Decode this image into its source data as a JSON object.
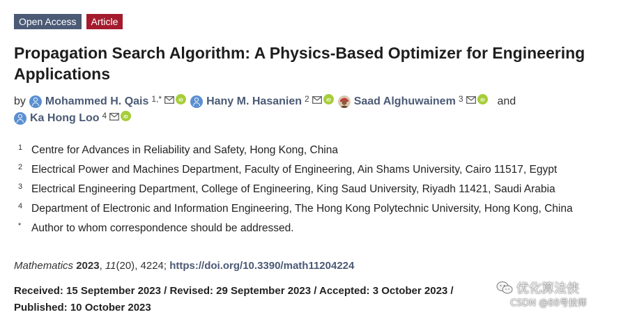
{
  "badges": {
    "open_access": "Open Access",
    "article_type": "Article"
  },
  "title": "Propagation Search Algorithm: A Physics-Based Optimizer for Engineering Applications",
  "authors": {
    "prefix": "by",
    "conjunction": "and",
    "list": [
      {
        "name": "Mohammed H. Qais",
        "affiliation": "1,*"
      },
      {
        "name": "Hany M. Hasanien",
        "affiliation": "2"
      },
      {
        "name": "Saad Alghuwainem",
        "affiliation": "3"
      },
      {
        "name": "Ka Hong Loo",
        "affiliation": "4"
      }
    ]
  },
  "affiliations": [
    {
      "marker": "1",
      "text": "Centre for Advances in Reliability and Safety, Hong Kong, China"
    },
    {
      "marker": "2",
      "text": "Electrical Power and Machines Department, Faculty of Engineering, Ain Shams University, Cairo 11517, Egypt"
    },
    {
      "marker": "3",
      "text": "Electrical Engineering Department, College of Engineering, King Saud University, Riyadh 11421, Saudi Arabia"
    },
    {
      "marker": "4",
      "text": "Department of Electronic and Information Engineering, The Hong Kong Polytechnic University, Hong Kong, China"
    },
    {
      "marker": "*",
      "text": "Author to whom correspondence should be addressed."
    }
  ],
  "citation": {
    "journal": "Mathematics",
    "year": "2023",
    "volume": "11",
    "issue": "(20)",
    "article_number": ", 4224; ",
    "doi": "https://doi.org/10.3390/math11204224"
  },
  "dates": {
    "line1": "Received: 15 September 2023 / Revised: 29 September 2023 / Accepted: 3 October 2023 /",
    "line2": "Published: 10 October 2023"
  },
  "watermark": {
    "title": "优化算法侠",
    "credit": "CSDN @88号技师"
  },
  "colors": {
    "open_access_badge": "#4b5a75",
    "article_badge": "#a41b2d",
    "author_link": "#4b5a75",
    "orcid_green": "#a6ce39",
    "avatar_blue": "#5a8fd0"
  },
  "icons": {
    "avatar": "person-avatar-icon",
    "email": "envelope-icon",
    "orcid": "orcid-icon",
    "wechat": "wechat-icon"
  }
}
